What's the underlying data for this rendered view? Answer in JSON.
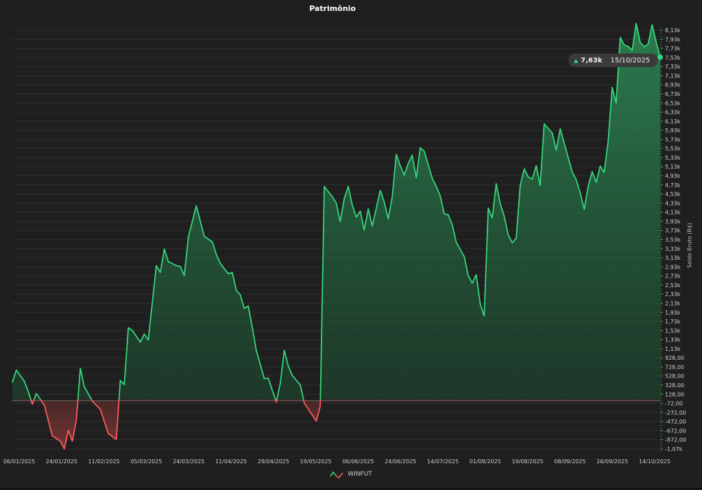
{
  "chart_data": {
    "type": "area",
    "title": "Patrimônio",
    "ylabel": "Saldo Bruto (R$)",
    "ylim": [
      -1070,
      8230
    ],
    "y_ticks": [
      "8,13k",
      "7,93k",
      "7,73k",
      "7,53k",
      "7,33k",
      "7,13k",
      "6,93k",
      "6,73k",
      "6,53k",
      "6,33k",
      "6,13k",
      "5,93k",
      "5,73k",
      "5,53k",
      "5,33k",
      "5,13k",
      "4,93k",
      "4,73k",
      "4,53k",
      "4,33k",
      "4,13k",
      "3,93k",
      "3,73k",
      "3,53k",
      "3,33k",
      "3,13k",
      "2,93k",
      "2,73k",
      "2,53k",
      "2,33k",
      "2,13k",
      "1,93k",
      "1,73k",
      "1,53k",
      "1,33k",
      "1,13k",
      "928,00",
      "728,00",
      "528,00",
      "328,00",
      "128,00",
      "-72,00",
      "-272,00",
      "-472,00",
      "-672,00",
      "-872,00",
      "-1,07k"
    ],
    "x_ticks": [
      "06/01/2025",
      "24/01/2025",
      "11/02/2025",
      "05/03/2025",
      "24/03/2025",
      "11/04/2025",
      "29/04/2025",
      "19/05/2025",
      "06/06/2025",
      "24/06/2025",
      "14/07/2025",
      "01/08/2025",
      "19/08/2025",
      "08/09/2025",
      "26/09/2025",
      "14/10/2025"
    ],
    "positive_color": "#36d67c",
    "negative_color": "#ff5a5a",
    "series": [
      {
        "name": "WINFUT",
        "points": [
          [
            0,
            400
          ],
          [
            1,
            680
          ],
          [
            3,
            430
          ],
          [
            4,
            200
          ],
          [
            5,
            -80
          ],
          [
            6,
            160
          ],
          [
            8,
            -100
          ],
          [
            10,
            -780
          ],
          [
            12,
            -900
          ],
          [
            13,
            -1070
          ],
          [
            14,
            -660
          ],
          [
            15,
            -900
          ],
          [
            16,
            -430
          ],
          [
            17,
            720
          ],
          [
            18,
            310
          ],
          [
            20,
            -10
          ],
          [
            22,
            -190
          ],
          [
            24,
            -730
          ],
          [
            26,
            -860
          ],
          [
            27,
            450
          ],
          [
            28,
            360
          ],
          [
            29,
            1620
          ],
          [
            30,
            1560
          ],
          [
            32,
            1300
          ],
          [
            33,
            1480
          ],
          [
            34,
            1350
          ],
          [
            36,
            3000
          ],
          [
            37,
            2850
          ],
          [
            38,
            3370
          ],
          [
            39,
            3090
          ],
          [
            41,
            3000
          ],
          [
            42,
            2980
          ],
          [
            43,
            2780
          ],
          [
            44,
            3630
          ],
          [
            46,
            4330
          ],
          [
            48,
            3650
          ],
          [
            50,
            3530
          ],
          [
            51,
            3250
          ],
          [
            52,
            3050
          ],
          [
            54,
            2820
          ],
          [
            55,
            2850
          ],
          [
            56,
            2450
          ],
          [
            57,
            2350
          ],
          [
            58,
            2050
          ],
          [
            59,
            2100
          ],
          [
            60,
            1630
          ],
          [
            61,
            1120
          ],
          [
            63,
            490
          ],
          [
            64,
            500
          ],
          [
            66,
            -30
          ],
          [
            67,
            380
          ],
          [
            68,
            1120
          ],
          [
            69,
            770
          ],
          [
            70,
            560
          ],
          [
            72,
            350
          ],
          [
            73,
            -50
          ],
          [
            75,
            -320
          ],
          [
            76,
            -450
          ],
          [
            77,
            -120
          ],
          [
            78,
            4760
          ],
          [
            80,
            4530
          ],
          [
            81,
            4390
          ],
          [
            82,
            3980
          ],
          [
            83,
            4490
          ],
          [
            84,
            4760
          ],
          [
            85,
            4350
          ],
          [
            86,
            4080
          ],
          [
            87,
            4210
          ],
          [
            88,
            3790
          ],
          [
            89,
            4260
          ],
          [
            90,
            3880
          ],
          [
            92,
            4670
          ],
          [
            93,
            4410
          ],
          [
            94,
            4040
          ],
          [
            95,
            4530
          ],
          [
            96,
            5470
          ],
          [
            97,
            5220
          ],
          [
            98,
            5010
          ],
          [
            99,
            5270
          ],
          [
            100,
            5450
          ],
          [
            101,
            4950
          ],
          [
            102,
            5620
          ],
          [
            103,
            5540
          ],
          [
            105,
            4940
          ],
          [
            106,
            4760
          ],
          [
            107,
            4550
          ],
          [
            108,
            4150
          ],
          [
            109,
            4130
          ],
          [
            110,
            3910
          ],
          [
            111,
            3520
          ],
          [
            112,
            3360
          ],
          [
            113,
            3200
          ],
          [
            114,
            2780
          ],
          [
            115,
            2610
          ],
          [
            116,
            2800
          ],
          [
            117,
            2150
          ],
          [
            118,
            1880
          ],
          [
            119,
            4280
          ],
          [
            120,
            4060
          ],
          [
            121,
            4820
          ],
          [
            122,
            4370
          ],
          [
            123,
            4100
          ],
          [
            124,
            3680
          ],
          [
            125,
            3510
          ],
          [
            126,
            3610
          ],
          [
            127,
            4780
          ],
          [
            128,
            5150
          ],
          [
            129,
            4970
          ],
          [
            130,
            4920
          ],
          [
            131,
            5220
          ],
          [
            132,
            4780
          ],
          [
            133,
            6150
          ],
          [
            135,
            5950
          ],
          [
            136,
            5570
          ],
          [
            137,
            6040
          ],
          [
            140,
            5080
          ],
          [
            141,
            4910
          ],
          [
            142,
            4620
          ],
          [
            143,
            4250
          ],
          [
            144,
            4760
          ],
          [
            145,
            5090
          ],
          [
            146,
            4850
          ],
          [
            147,
            5210
          ],
          [
            148,
            5070
          ],
          [
            149,
            5770
          ],
          [
            150,
            6960
          ],
          [
            151,
            6610
          ],
          [
            152,
            8070
          ],
          [
            153,
            7900
          ],
          [
            154,
            7870
          ],
          [
            155,
            7780
          ],
          [
            156,
            8380
          ],
          [
            157,
            7960
          ],
          [
            158,
            7860
          ],
          [
            159,
            7920
          ],
          [
            160,
            8350
          ],
          [
            161,
            7960
          ],
          [
            162,
            7630
          ]
        ]
      }
    ],
    "tooltip": {
      "value": "7,63k",
      "date": "15/10/2025"
    },
    "legend": [
      "WINFUT"
    ]
  }
}
